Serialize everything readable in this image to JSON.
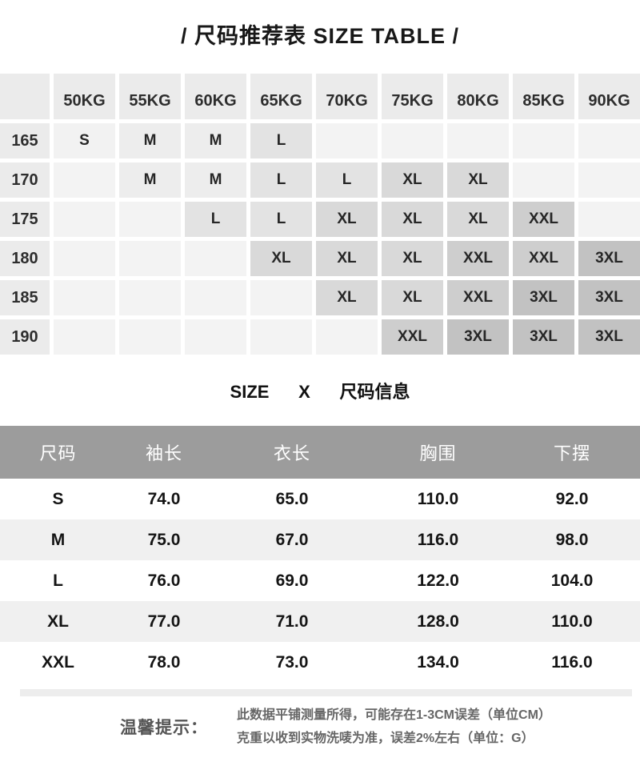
{
  "title": "/ 尺码推荐表 SIZE TABLE /",
  "size_grid": {
    "weight_headers": [
      "50KG",
      "55KG",
      "60KG",
      "65KG",
      "70KG",
      "75KG",
      "80KG",
      "85KG",
      "90KG"
    ],
    "rows": [
      {
        "label": "165",
        "cells": [
          "S",
          "M",
          "M",
          "L",
          "",
          "",
          "",
          "",
          ""
        ]
      },
      {
        "label": "170",
        "cells": [
          "",
          "M",
          "M",
          "L",
          "L",
          "XL",
          "XL",
          "",
          ""
        ]
      },
      {
        "label": "175",
        "cells": [
          "",
          "",
          "L",
          "L",
          "XL",
          "XL",
          "XL",
          "XXL",
          ""
        ]
      },
      {
        "label": "180",
        "cells": [
          "",
          "",
          "",
          "XL",
          "XL",
          "XL",
          "XXL",
          "XXL",
          "3XL"
        ]
      },
      {
        "label": "185",
        "cells": [
          "",
          "",
          "",
          "",
          "XL",
          "XL",
          "XXL",
          "3XL",
          "3XL"
        ]
      },
      {
        "label": "190",
        "cells": [
          "",
          "",
          "",
          "",
          "",
          "XXL",
          "3XL",
          "3XL",
          "3XL"
        ]
      }
    ],
    "size_colors": {
      "S": "#f2f2f2",
      "M": "#ededed",
      "L": "#e3e3e3",
      "XL": "#d9d9d9",
      "XXL": "#cecece",
      "3XL": "#c2c2c2",
      "empty": "#f3f3f3"
    },
    "header_bg": "#ebebeb"
  },
  "subtitle": "SIZE      X      尺码信息",
  "measure_table": {
    "header_bg": "#9c9c9c",
    "stripe_bg": "#f0f0f0",
    "headers": [
      "尺码",
      "袖长",
      "衣长",
      "胸围",
      "下摆"
    ],
    "rows": [
      {
        "size": "S",
        "values": [
          "74.0",
          "65.0",
          "110.0",
          "92.0"
        ]
      },
      {
        "size": "M",
        "values": [
          "75.0",
          "67.0",
          "116.0",
          "98.0"
        ]
      },
      {
        "size": "L",
        "values": [
          "76.0",
          "69.0",
          "122.0",
          "104.0"
        ]
      },
      {
        "size": "XL",
        "values": [
          "77.0",
          "71.0",
          "128.0",
          "110.0"
        ]
      },
      {
        "size": "XXL",
        "values": [
          "78.0",
          "73.0",
          "134.0",
          "116.0"
        ]
      }
    ]
  },
  "footer": {
    "label": "温馨提示：",
    "notes": [
      "此数据平铺测量所得，可能存在1-3CM误差（单位CM）",
      "克重以收到实物洗唛为准，误差2%左右（单位：G）"
    ]
  }
}
